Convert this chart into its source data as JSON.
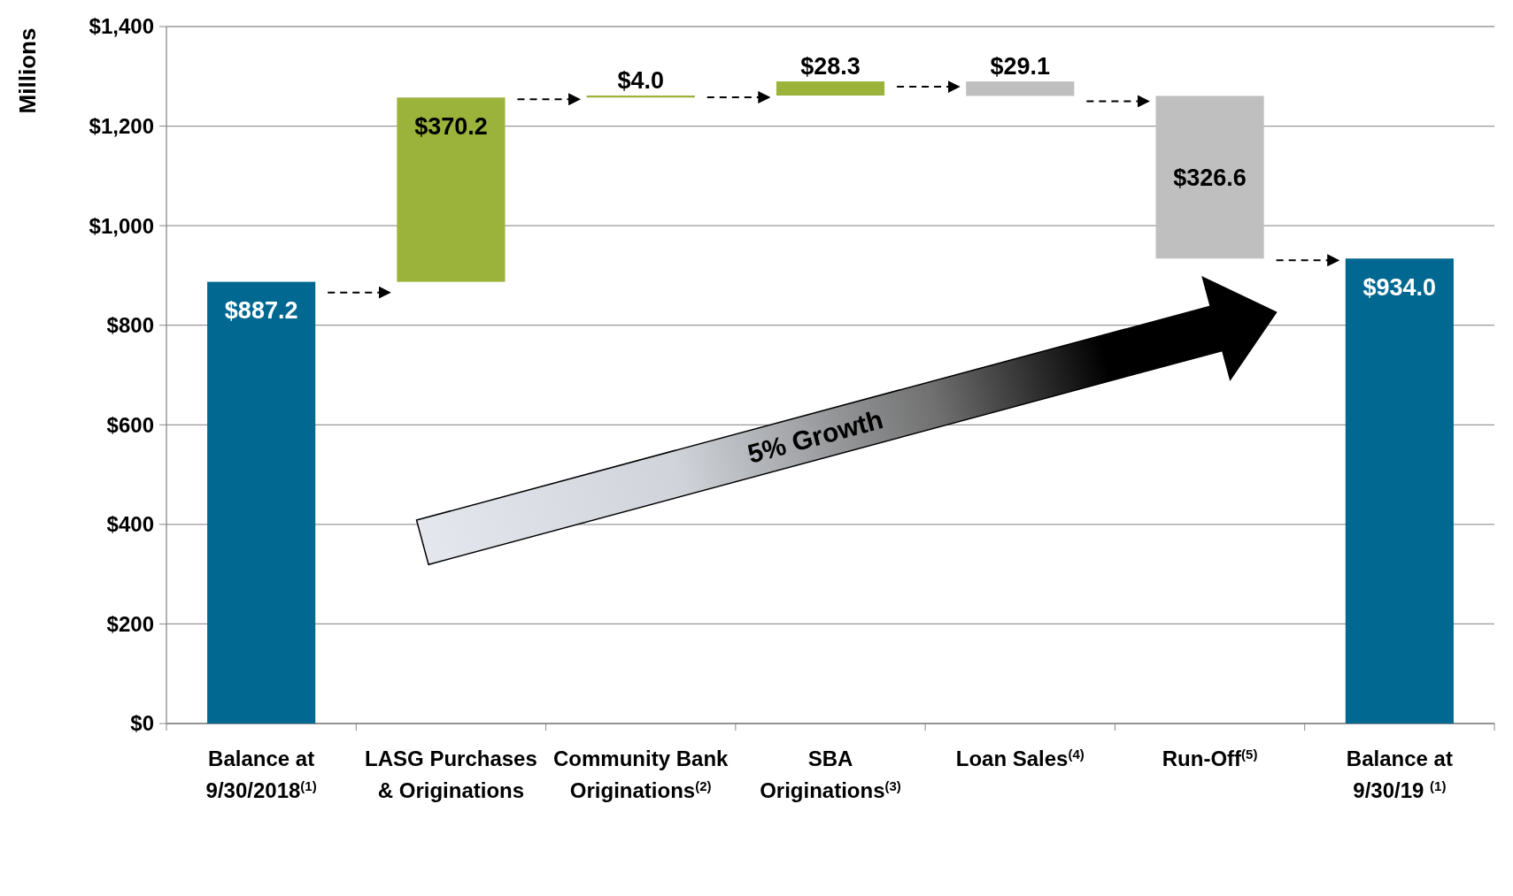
{
  "chart_data": {
    "type": "bar",
    "ylabel": "Millions",
    "categories": [
      "Balance at 9/30/2018$^{(1)}$",
      "LASG Purchases & Originations",
      "Community Bank Originations$^{(2)}$",
      "SBA Originations$^{(3)}$",
      "Loan Sales$^{(4)}$",
      "Run-Off$^{(5)}$",
      "Balance at 9/30/19 $^{(1)}$"
    ],
    "values": [
      887.2,
      370.2,
      4.0,
      28.3,
      -29.1,
      -326.6,
      934.0
    ],
    "base": [
      0,
      887.2,
      1257.4,
      1261.4,
      1289.7,
      1260.6,
      0
    ],
    "colors": [
      "#006891",
      "#9bb23b",
      "#9bb23b",
      "#9bb23b",
      "#bfbfbf",
      "#bfbfbf",
      "#006891"
    ],
    "value_labels": [
      "$887.2",
      "$370.2",
      "$4.0",
      "$28.3",
      "$29.1",
      "$326.6",
      "$934.0"
    ],
    "ylim": [
      0,
      1400
    ],
    "yticks": [
      {
        "value": 0,
        "label": "$0"
      },
      {
        "value": 200,
        "label": "$200"
      },
      {
        "value": 400,
        "label": "$400"
      },
      {
        "value": 600,
        "label": "$600"
      },
      {
        "value": 800,
        "label": "$800"
      },
      {
        "value": 1000,
        "label": "$1,000"
      },
      {
        "value": 1200,
        "label": "$1,200"
      },
      {
        "value": 1400,
        "label": "$1,400"
      }
    ],
    "grid": "y",
    "annotations": [
      "5% Growth"
    ]
  }
}
